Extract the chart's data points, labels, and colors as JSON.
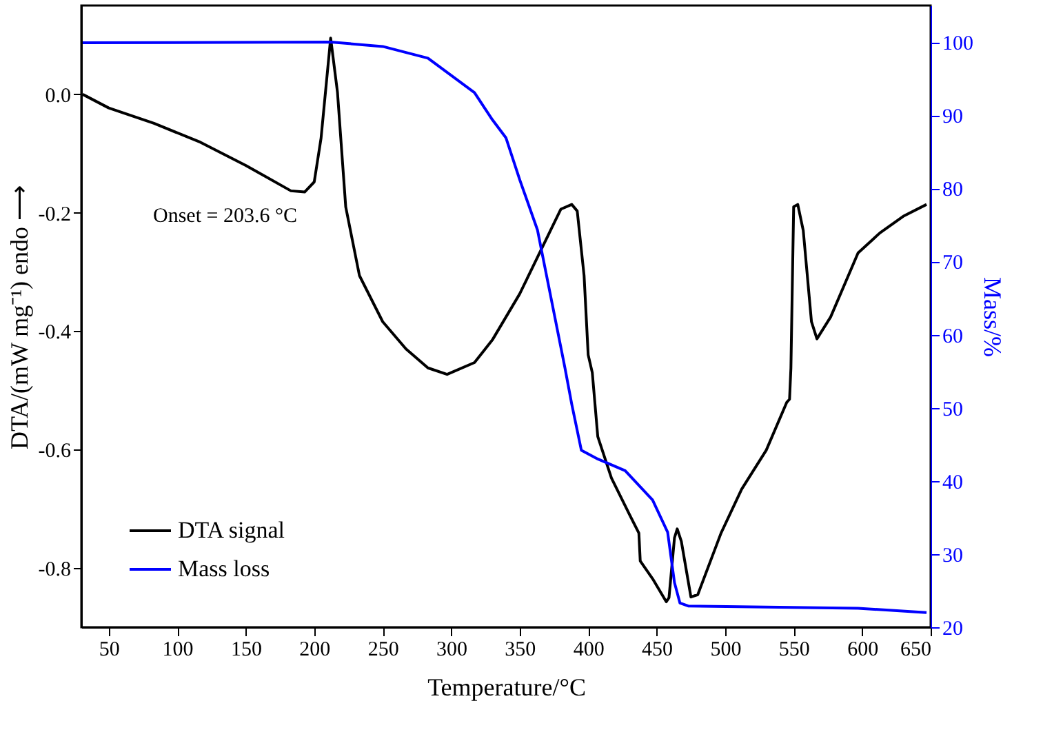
{
  "chart_data": {
    "type": "line",
    "xlabel": "Temperature/°C",
    "ylabel": "DTA/(mW mg⁻¹) endo ⟶",
    "y2label": "Mass/%",
    "xlim": [
      30,
      650
    ],
    "xticks": [
      50,
      100,
      150,
      200,
      250,
      300,
      350,
      400,
      450,
      500,
      550,
      600,
      650
    ],
    "ylim": [
      -0.9,
      0.15
    ],
    "yticks": [
      {
        "value": -0.8,
        "label": "-0.8"
      },
      {
        "value": -0.6,
        "label": "-0.6"
      },
      {
        "value": -0.4,
        "label": "-0.4"
      },
      {
        "value": -0.2,
        "label": "-0.2"
      },
      {
        "value": 0,
        "label": "0.0"
      }
    ],
    "y2lim": [
      20,
      105
    ],
    "y2ticks": [
      20,
      30,
      40,
      50,
      60,
      70,
      80,
      90,
      100
    ],
    "legend": "bottom left",
    "grid": false,
    "annotations": [
      "Onset = 203.6 °C"
    ],
    "series": [
      {
        "name": "DTA signal",
        "color": "#000000",
        "axis": "y",
        "x": [
          31,
          50,
          83,
          117,
          150,
          183,
          193,
          200,
          205,
          212,
          217,
          223,
          233,
          250,
          267,
          283,
          297,
          317,
          330,
          350,
          363,
          380,
          388,
          392,
          397,
          400,
          403,
          407,
          417,
          430,
          437,
          438,
          447,
          457,
          459,
          463,
          465,
          468,
          475,
          480,
          497,
          512,
          530,
          545,
          547,
          548,
          550,
          553,
          557,
          563,
          567,
          577,
          597,
          613,
          630,
          647
        ],
        "values": [
          0.0,
          -0.023,
          -0.049,
          -0.081,
          -0.12,
          -0.163,
          -0.165,
          -0.148,
          -0.074,
          0.095,
          0.003,
          -0.19,
          -0.306,
          -0.384,
          -0.43,
          -0.462,
          -0.473,
          -0.453,
          -0.415,
          -0.337,
          -0.275,
          -0.194,
          -0.186,
          -0.197,
          -0.306,
          -0.44,
          -0.47,
          -0.578,
          -0.648,
          -0.709,
          -0.741,
          -0.788,
          -0.818,
          -0.857,
          -0.85,
          -0.749,
          -0.734,
          -0.755,
          -0.849,
          -0.845,
          -0.741,
          -0.667,
          -0.601,
          -0.52,
          -0.515,
          -0.462,
          -0.19,
          -0.186,
          -0.23,
          -0.384,
          -0.413,
          -0.376,
          -0.268,
          -0.234,
          -0.206,
          -0.186
        ]
      },
      {
        "name": "Mass loss",
        "color": "#0000ff",
        "axis": "y2",
        "x": [
          31,
          212,
          250,
          283,
          317,
          330,
          340,
          350,
          363,
          383,
          388,
          395,
          407,
          427,
          447,
          458,
          463,
          467,
          473,
          597,
          647
        ],
        "values": [
          99.9,
          100.0,
          99.4,
          97.8,
          93.1,
          89.4,
          86.9,
          81.2,
          74.3,
          55.5,
          50.5,
          44.2,
          43.0,
          41.4,
          37.4,
          33.0,
          26.1,
          23.3,
          22.9,
          22.6,
          22.0
        ]
      }
    ]
  }
}
